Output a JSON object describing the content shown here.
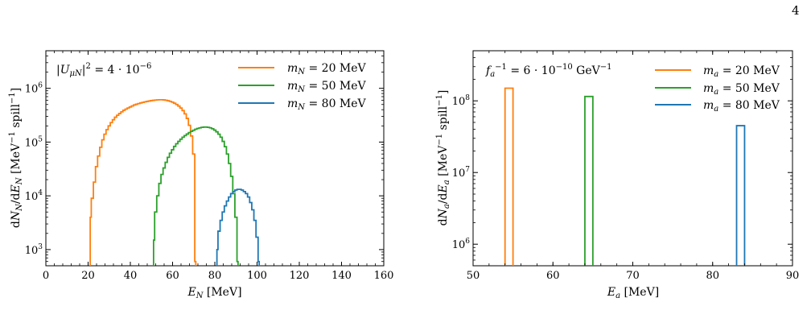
{
  "page_number": "4",
  "colors": {
    "orange": "#ff7f0e",
    "green": "#2ca02c",
    "blue": "#1f77b4"
  },
  "chart_data": [
    {
      "type": "histogram",
      "yscale": "log",
      "xlabel": "E_N [MeV]",
      "ylabel": "dN_N/dE_N [MeV^-1 spill^-1]",
      "xlim": [
        0,
        160
      ],
      "ylim": [
        500,
        5000000
      ],
      "xticks": [
        "0",
        "20",
        "40",
        "60",
        "80",
        "100",
        "120",
        "140",
        "160"
      ],
      "yticks": [
        "10^3",
        "10^4",
        "10^5",
        "10^6"
      ],
      "annotation": "|U_μN|^2 = 4 · 10^-6",
      "legend_position": "top-right",
      "series": [
        {
          "name": "m_N = 20 MeV",
          "color": "#ff7f0e",
          "x": [
            21,
            22,
            23,
            24,
            25,
            26,
            27,
            28,
            29,
            30,
            31,
            32,
            33,
            34,
            35,
            36,
            37,
            38,
            39,
            40,
            41,
            42,
            43,
            44,
            45,
            46,
            47,
            48,
            49,
            50,
            51,
            52,
            53,
            54,
            55,
            56,
            57,
            58,
            59,
            60,
            61,
            62,
            63,
            64,
            65,
            66,
            67,
            68,
            69,
            70,
            71
          ],
          "values": [
            4000,
            9000,
            18000,
            35000,
            55000,
            80000,
            110000,
            140000,
            170000,
            200000,
            230000,
            260000,
            290000,
            315000,
            340000,
            365000,
            390000,
            410000,
            430000,
            450000,
            470000,
            490000,
            505000,
            520000,
            535000,
            548000,
            560000,
            570000,
            580000,
            590000,
            598000,
            605000,
            610000,
            613000,
            612000,
            608000,
            600000,
            588000,
            572000,
            552000,
            528000,
            500000,
            468000,
            430000,
            385000,
            335000,
            275000,
            205000,
            130000,
            60000,
            600
          ]
        },
        {
          "name": "m_N = 50 MeV",
          "color": "#2ca02c",
          "x": [
            51,
            52,
            53,
            54,
            55,
            56,
            57,
            58,
            59,
            60,
            61,
            62,
            63,
            64,
            65,
            66,
            67,
            68,
            69,
            70,
            71,
            72,
            73,
            74,
            75,
            76,
            77,
            78,
            79,
            80,
            81,
            82,
            83,
            84,
            85,
            86,
            87,
            88,
            89,
            90,
            91
          ],
          "values": [
            1500,
            5000,
            10000,
            17000,
            25000,
            33000,
            42000,
            52000,
            62000,
            72000,
            83000,
            93000,
            103000,
            113000,
            123000,
            132000,
            141000,
            150000,
            158000,
            166000,
            173000,
            179000,
            184000,
            188000,
            190000,
            190000,
            188000,
            184000,
            177000,
            167000,
            155000,
            140000,
            123000,
            103000,
            82000,
            60000,
            40000,
            23000,
            11000,
            4000,
            600
          ]
        },
        {
          "name": "m_N = 80 MeV",
          "color": "#1f77b4",
          "x": [
            81,
            82,
            83,
            84,
            85,
            86,
            87,
            88,
            89,
            90,
            91,
            92,
            93,
            94,
            95,
            96,
            97,
            98,
            99,
            100,
            101
          ],
          "values": [
            1000,
            2200,
            3500,
            5000,
            6500,
            8000,
            9500,
            11000,
            12000,
            12800,
            13200,
            13200,
            12800,
            12000,
            11000,
            9500,
            7500,
            5500,
            3500,
            1700,
            600
          ]
        }
      ]
    },
    {
      "type": "histogram",
      "yscale": "log",
      "xlabel": "E_a [MeV]",
      "ylabel": "dN_a/dE_a [MeV^-1 spill^-1]",
      "xlim": [
        50,
        90
      ],
      "ylim": [
        500000,
        500000000
      ],
      "xticks": [
        "50",
        "60",
        "70",
        "80",
        "90"
      ],
      "yticks": [
        "10^6",
        "10^7",
        "10^8"
      ],
      "annotation": "f_a^-1 = 6 · 10^-10 GeV^-1",
      "legend_position": "top-right",
      "series": [
        {
          "name": "m_a = 20 MeV",
          "color": "#ff7f0e",
          "x": [
            54,
            55
          ],
          "values": [
            150000000
          ]
        },
        {
          "name": "m_a = 50 MeV",
          "color": "#2ca02c",
          "x": [
            64,
            65
          ],
          "values": [
            115000000
          ]
        },
        {
          "name": "m_a = 80 MeV",
          "color": "#1f77b4",
          "x": [
            83,
            84
          ],
          "values": [
            45000000
          ]
        }
      ]
    }
  ]
}
